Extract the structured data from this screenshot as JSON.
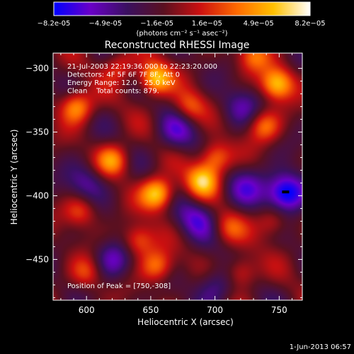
{
  "chart_data": {
    "type": "heatmap",
    "title": "Reconstructed RHESSI Image",
    "xlabel": "Heliocentric X (arcsec)",
    "ylabel": "Heliocentric Y (arcsec)",
    "xlim": [
      574,
      768
    ],
    "ylim": [
      -482,
      -288
    ],
    "x_ticks": [
      600,
      650,
      700,
      750
    ],
    "x_tick_labels": [
      "600",
      "650",
      "700",
      "750"
    ],
    "y_ticks": [
      -300,
      -350,
      -400,
      -450
    ],
    "y_tick_labels": [
      "-300",
      "-350",
      "-400",
      "-450"
    ],
    "colorbar": {
      "range": [
        -8.2e-05,
        8.2e-05
      ],
      "tick_labels": [
        "-8.2e-05",
        "-4.9e-05",
        "-1.6e-05",
        "1.6e-05",
        "4.9e-05",
        "8.2e-05"
      ],
      "label": "(photons cm⁻² s⁻¹ asec⁻²)",
      "stops": [
        "#0000ff",
        "#6a00c8",
        "#3a1060",
        "#5a1020",
        "#cc1010",
        "#ff6a00",
        "#ffc000",
        "#ffffff"
      ]
    },
    "annotations": [
      "21-Jul-2003 22:19:36.000 to 22:23:20.000",
      "Detectors: 4F 5F 6F 7F 8F, Att 0",
      "Energy Range: 12.0 - 25.0 keV",
      "Clean    Total counts: 879."
    ],
    "peak_text": "Position of Peak = [750,-308]",
    "peak": [
      750,
      -308
    ],
    "hot_spots": [
      {
        "x": 655,
        "y": -398,
        "v": 1.0
      },
      {
        "x": 653,
        "y": -308,
        "v": 0.95
      },
      {
        "x": 748,
        "y": -312,
        "v": 0.9
      },
      {
        "x": 592,
        "y": -330,
        "v": 0.75
      },
      {
        "x": 620,
        "y": -372,
        "v": 0.7
      },
      {
        "x": 700,
        "y": -370,
        "v": 0.7
      },
      {
        "x": 690,
        "y": -388,
        "v": 0.85
      },
      {
        "x": 640,
        "y": -435,
        "v": 0.6
      },
      {
        "x": 655,
        "y": -455,
        "v": 0.65
      },
      {
        "x": 738,
        "y": -345,
        "v": 0.6
      },
      {
        "x": 720,
        "y": -460,
        "v": 0.55
      },
      {
        "x": 595,
        "y": -412,
        "v": 0.5
      },
      {
        "x": 745,
        "y": -420,
        "v": 0.45
      },
      {
        "x": 680,
        "y": -330,
        "v": 0.5
      },
      {
        "x": 600,
        "y": -460,
        "v": 0.45
      },
      {
        "x": 710,
        "y": -425,
        "v": 0.4
      },
      {
        "x": 730,
        "y": -290,
        "v": 0.55
      },
      {
        "x": 625,
        "y": -298,
        "v": 0.45
      }
    ],
    "cold_spots": [
      {
        "x": 755,
        "y": -397,
        "v": -1.0
      },
      {
        "x": 725,
        "y": -393,
        "v": -0.4
      },
      {
        "x": 685,
        "y": -418,
        "v": -0.5
      },
      {
        "x": 620,
        "y": -450,
        "v": -0.5
      },
      {
        "x": 600,
        "y": -390,
        "v": -0.45
      },
      {
        "x": 700,
        "y": -470,
        "v": -0.45
      },
      {
        "x": 670,
        "y": -350,
        "v": -0.45
      },
      {
        "x": 720,
        "y": -330,
        "v": -0.4
      }
    ]
  },
  "footer": {
    "timestamp": "1-Jun-2013 06:57"
  }
}
